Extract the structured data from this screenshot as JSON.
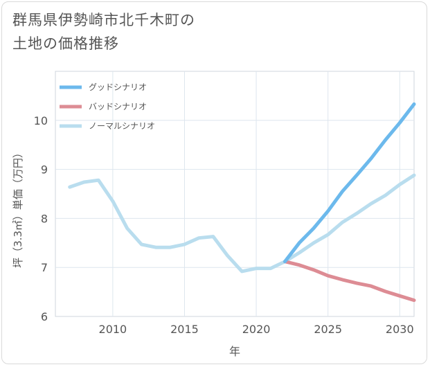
{
  "title": "群馬県伊勢崎市北千木町の\n土地の価格推移",
  "chart_data": {
    "type": "line",
    "xlabel": "年",
    "ylabel": "坪（3.3㎡）単価（万円）",
    "xlim": [
      2006,
      2031
    ],
    "ylim": [
      6,
      11
    ],
    "xticks": [
      2010,
      2015,
      2020,
      2025,
      2030
    ],
    "yticks": [
      6,
      7,
      8,
      9,
      10
    ],
    "grid": true,
    "legend_position": "top-left",
    "series": [
      {
        "name": "グッドシナリオ",
        "color": "#6cb9ec",
        "x": [
          2022,
          2023,
          2024,
          2025,
          2026,
          2027,
          2028,
          2029,
          2030,
          2031
        ],
        "values": [
          7.12,
          7.5,
          7.8,
          8.15,
          8.55,
          8.88,
          9.22,
          9.6,
          9.95,
          10.33
        ]
      },
      {
        "name": "バッドシナリオ",
        "color": "#dd8c94",
        "x": [
          2022,
          2023,
          2024,
          2025,
          2026,
          2027,
          2028,
          2029,
          2030,
          2031
        ],
        "values": [
          7.12,
          7.05,
          6.95,
          6.83,
          6.75,
          6.68,
          6.62,
          6.51,
          6.42,
          6.33
        ]
      },
      {
        "name": "ノーマルシナリオ",
        "color": "#b9ddee",
        "x": [
          2007,
          2008,
          2009,
          2010,
          2011,
          2012,
          2013,
          2014,
          2015,
          2016,
          2017,
          2018,
          2019,
          2020,
          2021,
          2022,
          2023,
          2024,
          2025,
          2026,
          2027,
          2028,
          2029,
          2030,
          2031
        ],
        "values": [
          8.64,
          8.74,
          8.78,
          8.35,
          7.8,
          7.47,
          7.41,
          7.41,
          7.47,
          7.6,
          7.63,
          7.24,
          6.92,
          6.98,
          6.98,
          7.12,
          7.3,
          7.5,
          7.67,
          7.92,
          8.1,
          8.3,
          8.47,
          8.69,
          8.88
        ]
      }
    ]
  }
}
